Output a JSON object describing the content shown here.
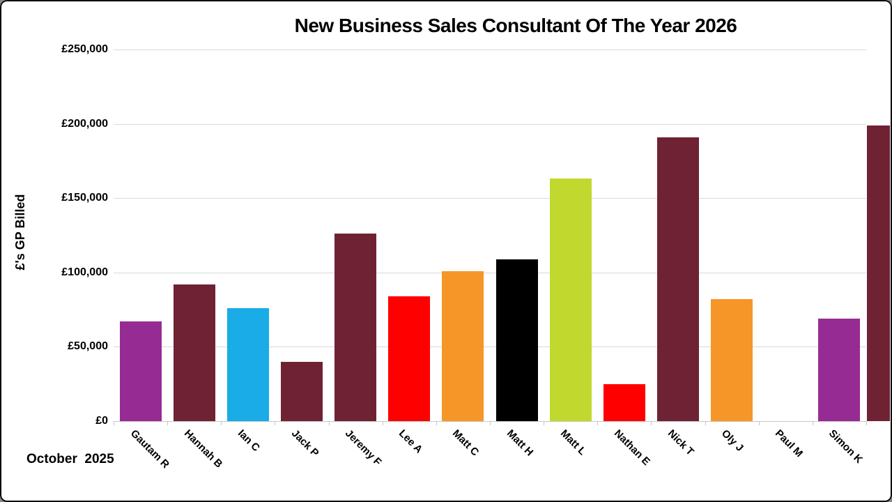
{
  "window": {
    "background_color": "#FFFFFF",
    "border_color": "#000000"
  },
  "colors": {
    "gridline": "#D9D9D9",
    "axis_line": "#C6C6C6",
    "text": "#000000"
  },
  "chart_data": {
    "type": "bar",
    "title": "New Business Sales Consultant Of The Year 2026",
    "ylabel": "£'s GP Billed",
    "xlabel": "",
    "footer": "October  2025",
    "legend": "none",
    "grid": true,
    "ylim": [
      0,
      250000
    ],
    "ytick_step": 50000,
    "ytick_labels": [
      "£0",
      "£50,000",
      "£100,000",
      "£150,000",
      "£200,000",
      "£250,000"
    ],
    "categories": [
      "Gautam R",
      "Hannah B",
      "Ian C",
      "Jack P",
      "Jeremy F",
      "Lee A",
      "Matt C",
      "Matt H",
      "Matt L",
      "Nathan E",
      "Nick T",
      "Oly J",
      "Paul M",
      "Simon K"
    ],
    "values": [
      67000,
      92000,
      76000,
      40000,
      126000,
      84000,
      101000,
      109000,
      163000,
      25000,
      191000,
      82000,
      0,
      69000
    ],
    "bar_colors": [
      "#962B93",
      "#6E2233",
      "#19ACE6",
      "#6E2233",
      "#6E2233",
      "#FE0000",
      "#F79628",
      "#000000",
      "#C1D82F",
      "#FE0000",
      "#6E2233",
      "#F79628",
      "#F79628",
      "#962B93"
    ],
    "clipped_partial_bar": {
      "visible": true,
      "color": "#6E2233",
      "note": "unlabeled bar clipped by right window edge"
    }
  }
}
